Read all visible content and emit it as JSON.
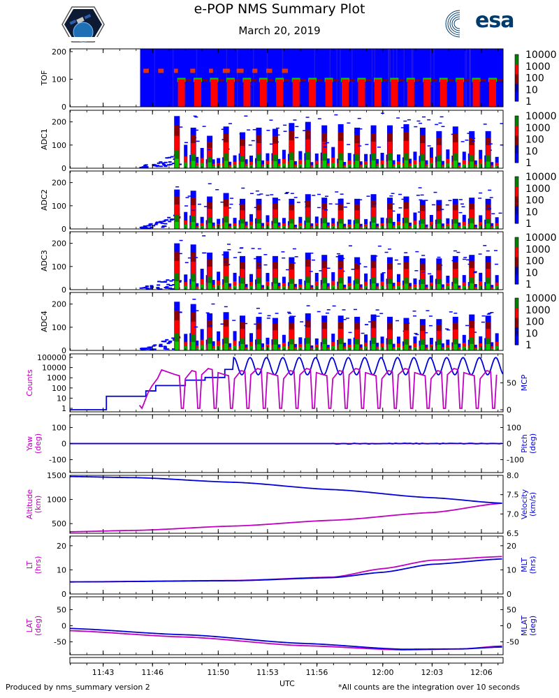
{
  "header": {
    "title": "e-POP NMS Summary Plot",
    "subtitle": "March 20, 2019",
    "org_logo_text": "esa",
    "mission_logo": "satellite-patch-logo"
  },
  "footer": {
    "left": "Produced by nms_summary version 2",
    "right": "*All counts are the integration over 10 seconds"
  },
  "colors": {
    "magenta": "#c000c0",
    "blue": "#0000d8",
    "spectrogram_background": "#0000ff",
    "colormap": [
      "#0000ff",
      "#8b0000",
      "#ff0000",
      "#008000",
      "#00cc00"
    ]
  },
  "chart_data": [
    {
      "id": "tof",
      "type": "heatmap",
      "ylabel": "TOF",
      "ylim": [
        0,
        210
      ],
      "yticks": [
        0,
        100,
        200
      ],
      "colorbar": {
        "scale": "log",
        "ticks": [
          "1",
          "10",
          "100",
          "1000",
          "10000"
        ]
      },
      "data_start": "11:45:15",
      "bands": [
        {
          "y": 134,
          "note": "intermittent red streak"
        },
        {
          "y": 96,
          "note": "periodic red/green bursts"
        }
      ]
    },
    {
      "id": "adc1",
      "type": "heatmap",
      "ylabel": "ADC1",
      "ylim": [
        0,
        250
      ],
      "yticks": [
        0,
        100,
        200
      ],
      "colorbar": {
        "scale": "log",
        "ticks": [
          "1",
          "10",
          "100",
          "1000",
          "10000"
        ]
      },
      "burst_peaks": [
        225,
        175,
        140,
        180,
        155,
        175,
        170,
        195,
        200,
        185,
        190,
        175,
        185,
        185,
        190,
        175,
        160,
        180,
        160,
        160
      ]
    },
    {
      "id": "adc2",
      "type": "heatmap",
      "ylabel": "ADC2",
      "ylim": [
        0,
        250
      ],
      "yticks": [
        0,
        100,
        200
      ],
      "colorbar": {
        "scale": "log",
        "ticks": [
          "1",
          "10",
          "100",
          "1000",
          "10000"
        ]
      },
      "burst_peaks": [
        170,
        165,
        140,
        155,
        130,
        130,
        135,
        130,
        150,
        135,
        130,
        130,
        150,
        135,
        140,
        125,
        125,
        130,
        135,
        130
      ]
    },
    {
      "id": "adc3",
      "type": "heatmap",
      "ylabel": "ADC3",
      "ylim": [
        0,
        250
      ],
      "yticks": [
        0,
        100,
        200
      ],
      "colorbar": {
        "scale": "log",
        "ticks": [
          "1",
          "10",
          "100",
          "1000",
          "10000"
        ]
      },
      "burst_peaks": [
        200,
        195,
        160,
        165,
        145,
        145,
        145,
        140,
        160,
        150,
        150,
        140,
        150,
        140,
        145,
        135,
        135,
        145,
        150,
        145
      ]
    },
    {
      "id": "adc4",
      "type": "heatmap",
      "ylabel": "ADC4",
      "ylim": [
        0,
        250
      ],
      "yticks": [
        0,
        100,
        200
      ],
      "colorbar": {
        "scale": "log",
        "ticks": [
          "1",
          "10",
          "100",
          "1000",
          "10000"
        ]
      },
      "burst_peaks": [
        210,
        200,
        160,
        165,
        150,
        145,
        140,
        145,
        160,
        150,
        150,
        145,
        155,
        145,
        140,
        135,
        135,
        145,
        155,
        150
      ]
    },
    {
      "id": "counts_mcp",
      "type": "line",
      "ylabel": "Counts",
      "y2label": "MCP",
      "yscale": "log",
      "yticks": [
        "1",
        "10",
        "100",
        "1000",
        "10000",
        "100000"
      ],
      "y2lim": [
        0,
        100
      ],
      "y2ticks": [
        "0",
        "50"
      ],
      "series": [
        {
          "name": "Counts",
          "axis": "left",
          "color": "magenta",
          "data_start": "11:45:20",
          "typical_peak": 10000,
          "typical_low": 1
        },
        {
          "name": "MCP",
          "axis": "right",
          "color": "blue",
          "steps": [
            [
              0,
              0
            ],
            [
              11.72,
              25
            ],
            [
              11.76,
              35
            ],
            [
              11.77,
              45
            ],
            [
              11.8,
              55
            ],
            [
              11.82,
              60
            ],
            [
              11.84,
              75
            ]
          ],
          "oscillation_low": 65,
          "oscillation_high": 97
        }
      ]
    },
    {
      "id": "attitude",
      "type": "line",
      "ylabel": "Yaw\n(deg)",
      "y2label": "Pitch\n(deg)",
      "ylim": [
        -180,
        180
      ],
      "yticks": [
        "-100",
        "0",
        "100"
      ],
      "y2lim": [
        -180,
        180
      ],
      "y2ticks": [
        "-100",
        "0",
        "100"
      ],
      "series": [
        {
          "name": "Yaw",
          "axis": "left",
          "color": "magenta",
          "value": 0
        },
        {
          "name": "Pitch",
          "axis": "right",
          "color": "blue",
          "value": 0
        }
      ]
    },
    {
      "id": "orbit",
      "type": "line",
      "ylabel": "Altitude\n(km)",
      "y2label": "Velocity\n(km/s)",
      "ylim": [
        300,
        1500
      ],
      "yticks": [
        "500",
        "1000",
        "1500"
      ],
      "y2lim": [
        6.5,
        8.0
      ],
      "y2ticks": [
        "6.5",
        "7.0",
        "7.5",
        "8.0"
      ],
      "series": [
        {
          "name": "Altitude",
          "axis": "left",
          "color": "magenta",
          "x": [
            11.68,
            11.75,
            11.85,
            11.95,
            12.05,
            12.12
          ],
          "y": [
            330,
            360,
            450,
            570,
            730,
            920
          ]
        },
        {
          "name": "Velocity",
          "axis": "right",
          "color": "blue",
          "x": [
            11.68,
            11.75,
            11.85,
            11.95,
            12.05,
            12.12
          ],
          "y": [
            7.97,
            7.94,
            7.82,
            7.63,
            7.42,
            7.28
          ]
        }
      ]
    },
    {
      "id": "local_time",
      "type": "line",
      "ylabel": "LT\n(hrs)",
      "y2label": "MLT\n(hrs)",
      "ylim": [
        0,
        24
      ],
      "yticks": [
        "0",
        "10",
        "20"
      ],
      "y2lim": [
        0,
        24
      ],
      "y2ticks": [
        "0",
        "10",
        "20"
      ],
      "series": [
        {
          "name": "LT",
          "axis": "left",
          "color": "magenta",
          "x": [
            11.68,
            11.85,
            11.95,
            12.0,
            12.05,
            12.12
          ],
          "y": [
            5.0,
            5.6,
            7.0,
            10.5,
            14.0,
            15.5
          ]
        },
        {
          "name": "MLT",
          "axis": "right",
          "color": "blue",
          "x": [
            11.68,
            11.85,
            11.95,
            12.0,
            12.05,
            12.12
          ],
          "y": [
            5.0,
            5.5,
            6.8,
            9.0,
            12.3,
            14.5
          ]
        }
      ]
    },
    {
      "id": "latitude",
      "type": "line",
      "ylabel": "LAT\n(deg)",
      "y2label": "MLAT\n(deg)",
      "ylim": [
        -90,
        90
      ],
      "yticks": [
        "-50",
        "0",
        "50"
      ],
      "y2lim": [
        -90,
        90
      ],
      "y2ticks": [
        "-50",
        "0",
        "50"
      ],
      "series": [
        {
          "name": "LAT",
          "axis": "left",
          "color": "magenta",
          "x": [
            11.68,
            11.8,
            11.92,
            12.02,
            12.08,
            12.12
          ],
          "y": [
            -15,
            -35,
            -62,
            -75,
            -72,
            -63
          ]
        },
        {
          "name": "MLAT",
          "axis": "right",
          "color": "blue",
          "x": [
            11.68,
            11.8,
            11.92,
            12.02,
            12.08,
            12.12
          ],
          "y": [
            -8,
            -28,
            -55,
            -73,
            -72,
            -66
          ]
        }
      ]
    }
  ],
  "xaxis": {
    "label": "UTC",
    "start": 11.683,
    "end": 12.122,
    "ticks": [
      {
        "t": 11.7167,
        "label": "11:43"
      },
      {
        "t": 11.7667,
        "label": "11:46"
      },
      {
        "t": 11.8333,
        "label": "11:50"
      },
      {
        "t": 11.8833,
        "label": "11:53"
      },
      {
        "t": 11.9333,
        "label": "11:56"
      },
      {
        "t": 12.0,
        "label": "12:00"
      },
      {
        "t": 12.05,
        "label": "12:03"
      },
      {
        "t": 12.1,
        "label": "12:06"
      }
    ]
  }
}
